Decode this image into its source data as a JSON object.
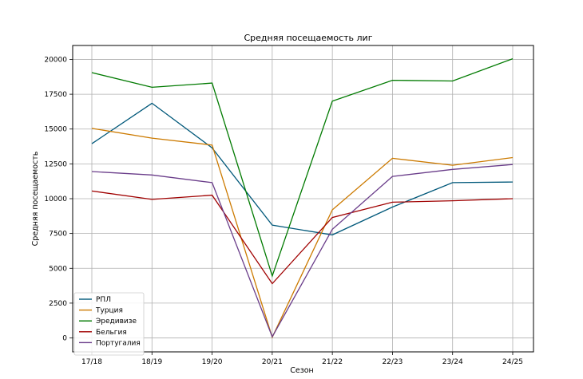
{
  "chart_data": {
    "type": "line",
    "title": "Средняя посещаемость лиг",
    "xlabel": "Сезон",
    "ylabel": "Средняя посещаемость",
    "categories": [
      "17/18",
      "18/19",
      "19/20",
      "20/21",
      "21/22",
      "22/23",
      "23/24",
      "24/25"
    ],
    "ylim": [
      -1000,
      21000
    ],
    "yticks": [
      0,
      2500,
      5000,
      7500,
      10000,
      12500,
      15000,
      17500,
      20000
    ],
    "grid": true,
    "legend_position": "bottom-left",
    "series": [
      {
        "name": "РПЛ",
        "color": "#00587a",
        "values": [
          13950,
          16850,
          13650,
          8100,
          7400,
          9400,
          11150,
          11200
        ]
      },
      {
        "name": "Турция",
        "color": "#cc7a00",
        "values": [
          15050,
          14350,
          13850,
          50,
          9200,
          12900,
          12400,
          12950
        ]
      },
      {
        "name": "Эредивизе",
        "color": "#007a00",
        "values": [
          19050,
          18000,
          18300,
          4450,
          17000,
          18500,
          18450,
          20050
        ]
      },
      {
        "name": "Бельгия",
        "color": "#a00000",
        "values": [
          10550,
          9950,
          10250,
          3900,
          8650,
          9750,
          9850,
          10000
        ]
      },
      {
        "name": "Португалия",
        "color": "#6a3d8a",
        "values": [
          11950,
          11700,
          11150,
          80,
          7800,
          11600,
          12100,
          12450
        ]
      }
    ]
  }
}
